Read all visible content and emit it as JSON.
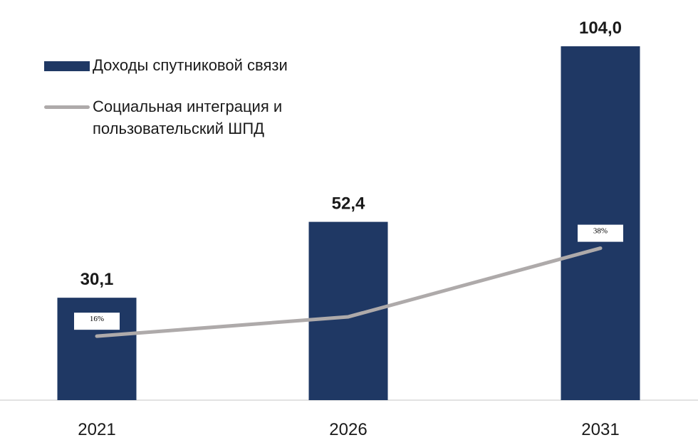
{
  "chart_data": {
    "type": "bar",
    "categories": [
      "2021",
      "2026",
      "2031"
    ],
    "series": [
      {
        "name": "Доходы спутниковой связи",
        "type": "bar",
        "values": [
          30.1,
          52.4,
          104.0
        ],
        "value_labels": [
          "30,1",
          "52,4",
          "104,0"
        ],
        "color": "#1f3864"
      },
      {
        "name": "Социальная интеграция и пользовательский ШПД",
        "type": "line",
        "values": [
          16,
          null,
          38
        ],
        "value_labels": [
          "16%",
          "",
          "38%"
        ],
        "color": "#aeaaaa"
      }
    ],
    "title": "",
    "xlabel": "",
    "ylabel": "",
    "ylim": [
      0,
      110
    ],
    "line_ylim": [
      0,
      100
    ],
    "legend_position": "top-left",
    "grid": false
  }
}
